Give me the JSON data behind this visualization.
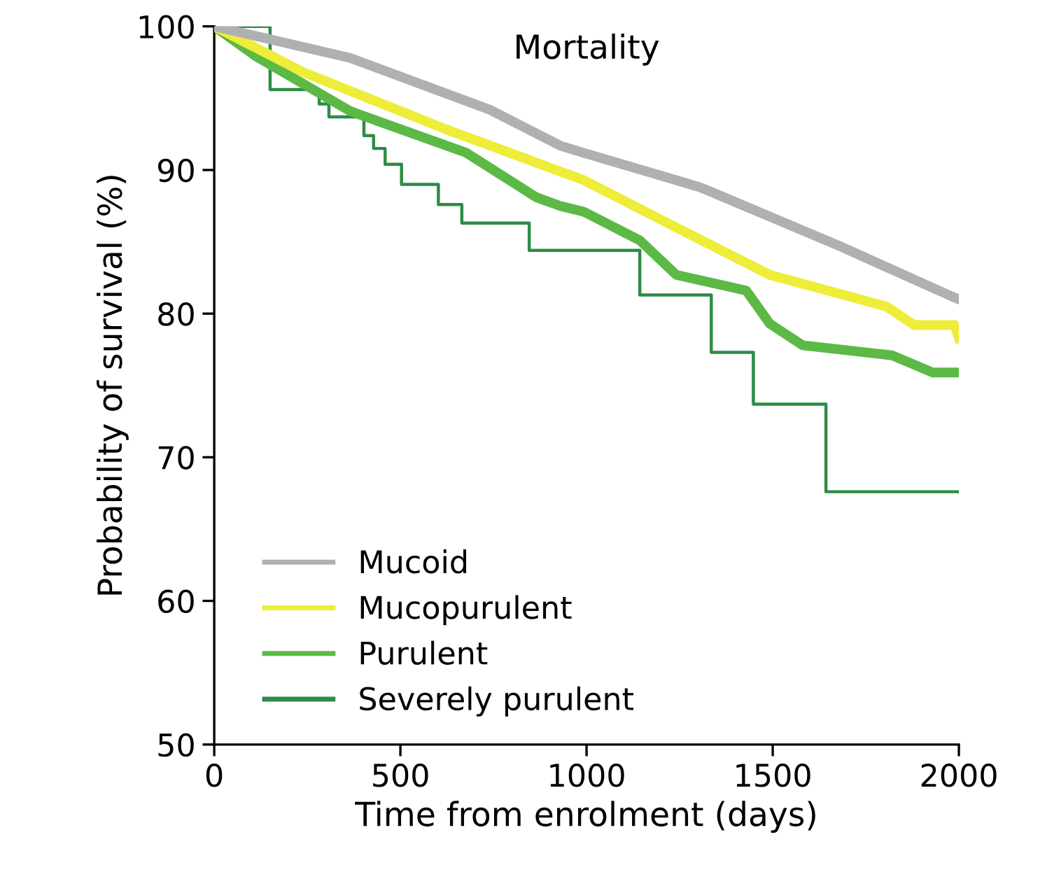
{
  "chart_data": {
    "type": "line",
    "title": "Mortality",
    "xlabel": "Time from enrolment (days)",
    "ylabel": "Probability of survival (%)",
    "xlim": [
      0,
      2000
    ],
    "xticks": [
      0,
      500,
      1000,
      1500,
      2000
    ],
    "ylim": [
      50,
      100
    ],
    "yticks": [
      50,
      60,
      70,
      80,
      90,
      100
    ],
    "grid": false,
    "legend": "bottom left",
    "marker": "none",
    "line_style": "solid",
    "series": [
      {
        "name": "Mucoid",
        "color": "#b0b0b3",
        "x": [
          0,
          365,
          740,
          929,
          992,
          1305,
          1680,
          1981,
          2000
        ],
        "values": [
          100,
          97.8,
          94.2,
          91.7,
          91.2,
          88.8,
          84.7,
          81.2,
          81
        ]
      },
      {
        "name": "Mucopurulent",
        "color": "#eded3a",
        "x": [
          0,
          240,
          616,
          929,
          992,
          1218,
          1492,
          1805,
          1880,
          1988,
          2000
        ],
        "values": [
          100,
          96.8,
          92.9,
          89.9,
          89.3,
          86.3,
          82.7,
          80.5,
          79.2,
          79.2,
          78.3
        ]
      },
      {
        "name": "Purulent",
        "color": "#5cb946",
        "x": [
          0,
          113,
          365,
          677,
          865,
          929,
          992,
          1143,
          1241,
          1429,
          1492,
          1580,
          1820,
          1930,
          2000
        ],
        "values": [
          100,
          97.9,
          94.1,
          91.2,
          88.1,
          87.5,
          87.1,
          85.1,
          82.7,
          81.6,
          79.3,
          77.8,
          77.1,
          75.9,
          75.9
        ]
      },
      {
        "name": "Severely purulent",
        "color": "#2e8b45",
        "type": "step",
        "x": [
          0,
          150,
          282,
          308,
          402,
          428,
          459,
          503,
          602,
          665,
          846,
          1143,
          1335,
          1448,
          1643,
          2000
        ],
        "values": [
          100,
          95.6,
          94.6,
          93.7,
          92.4,
          91.5,
          90.4,
          89.0,
          87.6,
          86.3,
          84.4,
          81.3,
          77.3,
          73.7,
          67.6,
          67.6
        ]
      }
    ]
  }
}
